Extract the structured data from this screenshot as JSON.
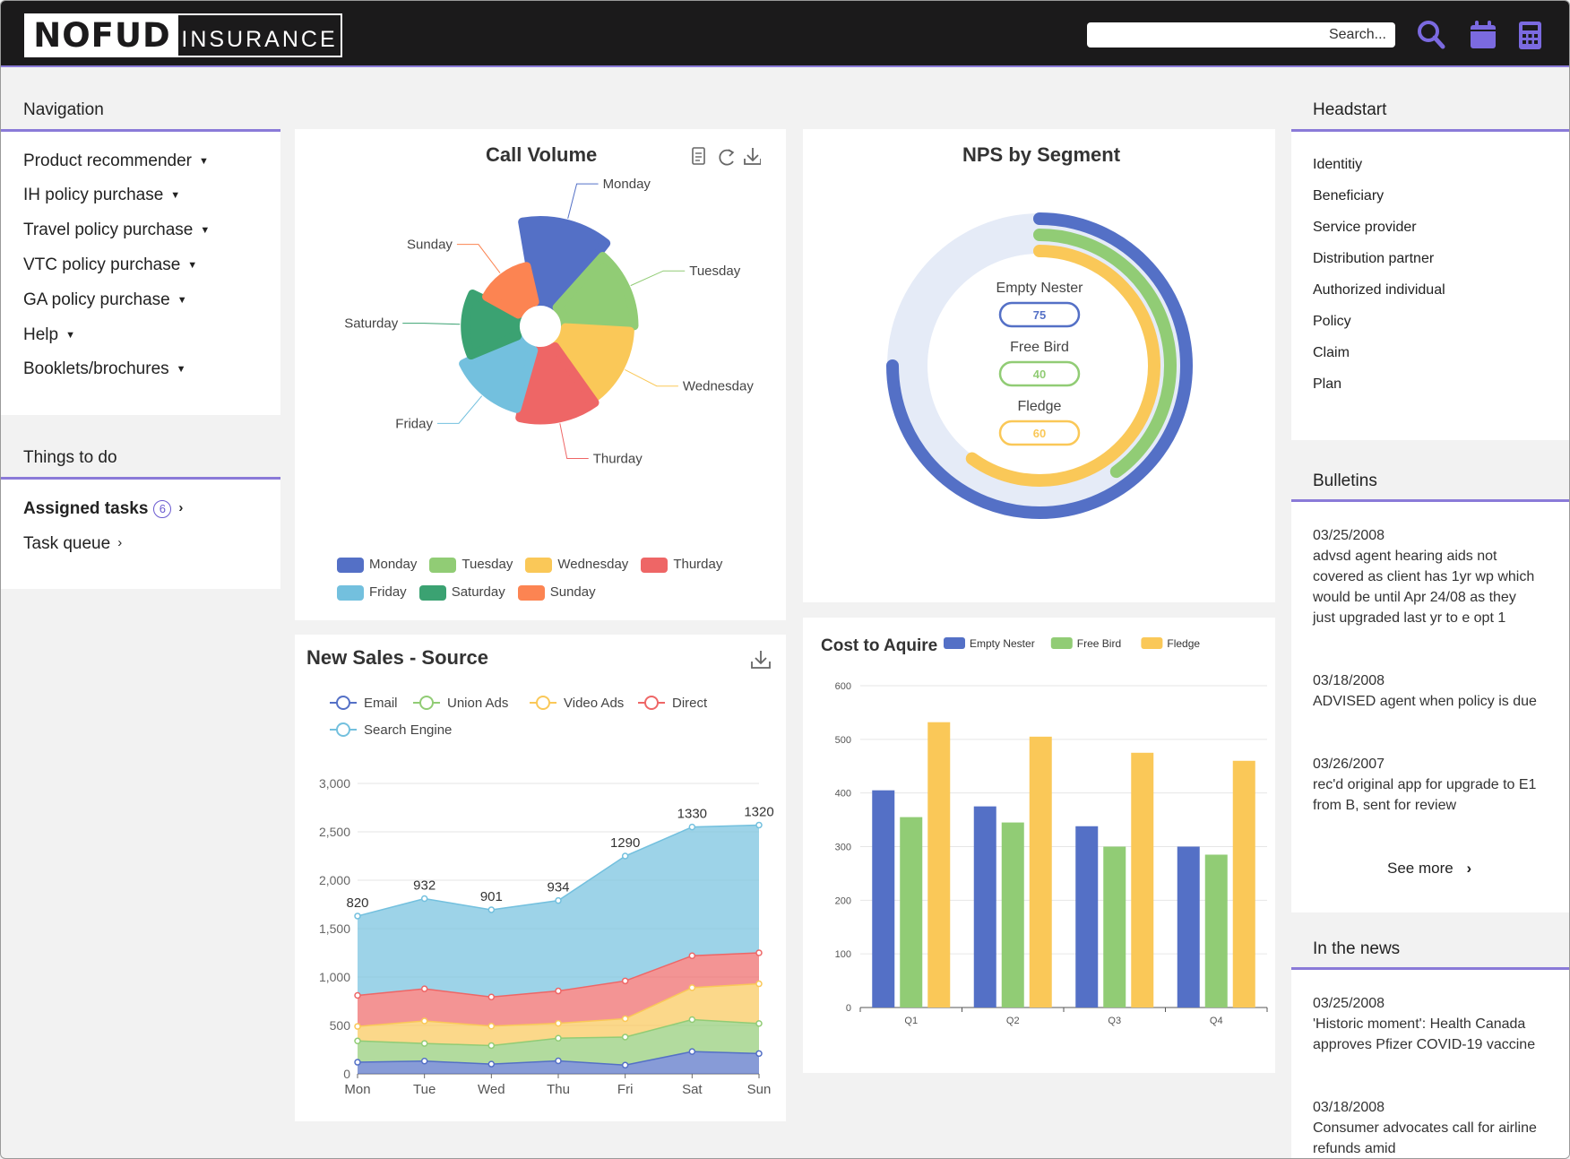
{
  "header": {
    "logo_left": "NOFUD",
    "logo_right": "INSURANCE",
    "search_placeholder": "Search..."
  },
  "navigation": {
    "title": "Navigation",
    "items": [
      {
        "label": "Product recommender"
      },
      {
        "label": "IH policy purchase"
      },
      {
        "label": "Travel policy purchase"
      },
      {
        "label": "VTC policy purchase"
      },
      {
        "label": "GA policy purchase"
      },
      {
        "label": "Help"
      },
      {
        "label": "Booklets/brochures"
      }
    ]
  },
  "todo": {
    "title": "Things to do",
    "assigned_label": "Assigned tasks",
    "assigned_count": "6",
    "queue_label": "Task queue"
  },
  "headstart": {
    "title": "Headstart",
    "items": [
      "Identitiy",
      "Beneficiary",
      "Service provider",
      "Distribution partner",
      "Authorized individual",
      "Policy",
      "Claim",
      "Plan"
    ]
  },
  "bulletins": {
    "title": "Bulletins",
    "items": [
      {
        "date": "03/25/2008",
        "text": "advsd agent hearing aids not covered as client has 1yr wp which would be until Apr 24/08 as they just upgraded last yr to e opt 1"
      },
      {
        "date": "03/18/2008",
        "text": "ADVISED agent when policy is due"
      },
      {
        "date": "03/26/2007",
        "text": "rec'd original app for upgrade to E1 from B, sent for review"
      }
    ],
    "see_more": "See more"
  },
  "news": {
    "title": "In the news",
    "items": [
      {
        "date": "03/25/2008",
        "text": "'Historic moment': Health Canada approves Pfizer COVID-19 vaccine"
      },
      {
        "date": "03/18/2008",
        "text": "Consumer advocates call for airline refunds amid"
      }
    ]
  },
  "colors": {
    "accent": "#8a7ad8",
    "blue": "#5470c6",
    "green": "#91cc75",
    "yellow": "#fac858",
    "red": "#ee6666",
    "lightblue": "#73c0de",
    "darkgreen": "#3ba272",
    "orange": "#fc8452"
  },
  "chart_data": [
    {
      "id": "call_volume",
      "type": "pie",
      "variant": "rose",
      "title": "Call Volume",
      "categories": [
        "Monday",
        "Tuesday",
        "Wednesday",
        "Thurday",
        "Friday",
        "Saturday",
        "Sunday"
      ],
      "values": [
        100,
        85,
        80,
        85,
        75,
        62,
        45
      ],
      "legend": [
        "Monday",
        "Tuesday",
        "Wednesday",
        "Thurday",
        "Friday",
        "Saturday",
        "Sunday"
      ]
    },
    {
      "id": "nps",
      "type": "radial-bar",
      "title": "NPS by Segment",
      "series": [
        {
          "name": "Empty Nester",
          "value": 75
        },
        {
          "name": "Free Bird",
          "value": 40
        },
        {
          "name": "Fledge",
          "value": 60
        }
      ]
    },
    {
      "id": "new_sales",
      "type": "area",
      "stacked": true,
      "title": "New Sales - Source",
      "categories": [
        "Mon",
        "Tue",
        "Wed",
        "Thu",
        "Fri",
        "Sat",
        "Sun"
      ],
      "series": [
        {
          "name": "Email",
          "values": [
            120,
            132,
            101,
            134,
            90,
            230,
            210
          ]
        },
        {
          "name": "Union Ads",
          "values": [
            220,
            182,
            191,
            234,
            290,
            330,
            310
          ]
        },
        {
          "name": "Video Ads",
          "values": [
            150,
            232,
            201,
            154,
            190,
            330,
            410
          ]
        },
        {
          "name": "Direct",
          "values": [
            320,
            332,
            301,
            334,
            390,
            330,
            320
          ]
        },
        {
          "name": "Search Engine",
          "values": [
            820,
            932,
            901,
            934,
            1290,
            1330,
            1320
          ]
        }
      ],
      "ylim": [
        0,
        3000
      ],
      "yticks": [
        "0",
        "500",
        "1,000",
        "1,500",
        "2,000",
        "2,500",
        "3,000"
      ],
      "legend_position": "top"
    },
    {
      "id": "cost_to_acquire",
      "type": "bar",
      "title": "Cost to Aquire",
      "categories": [
        "Q1",
        "Q2",
        "Q3",
        "Q4"
      ],
      "series": [
        {
          "name": "Empty Nester",
          "values": [
            405,
            375,
            338,
            300
          ]
        },
        {
          "name": "Free Bird",
          "values": [
            355,
            345,
            300,
            285
          ]
        },
        {
          "name": "Fledge",
          "values": [
            532,
            505,
            475,
            460
          ]
        }
      ],
      "ylim": [
        0,
        600
      ],
      "yticks": [
        "0",
        "100",
        "200",
        "300",
        "400",
        "500",
        "600"
      ],
      "legend_position": "top-right"
    }
  ]
}
